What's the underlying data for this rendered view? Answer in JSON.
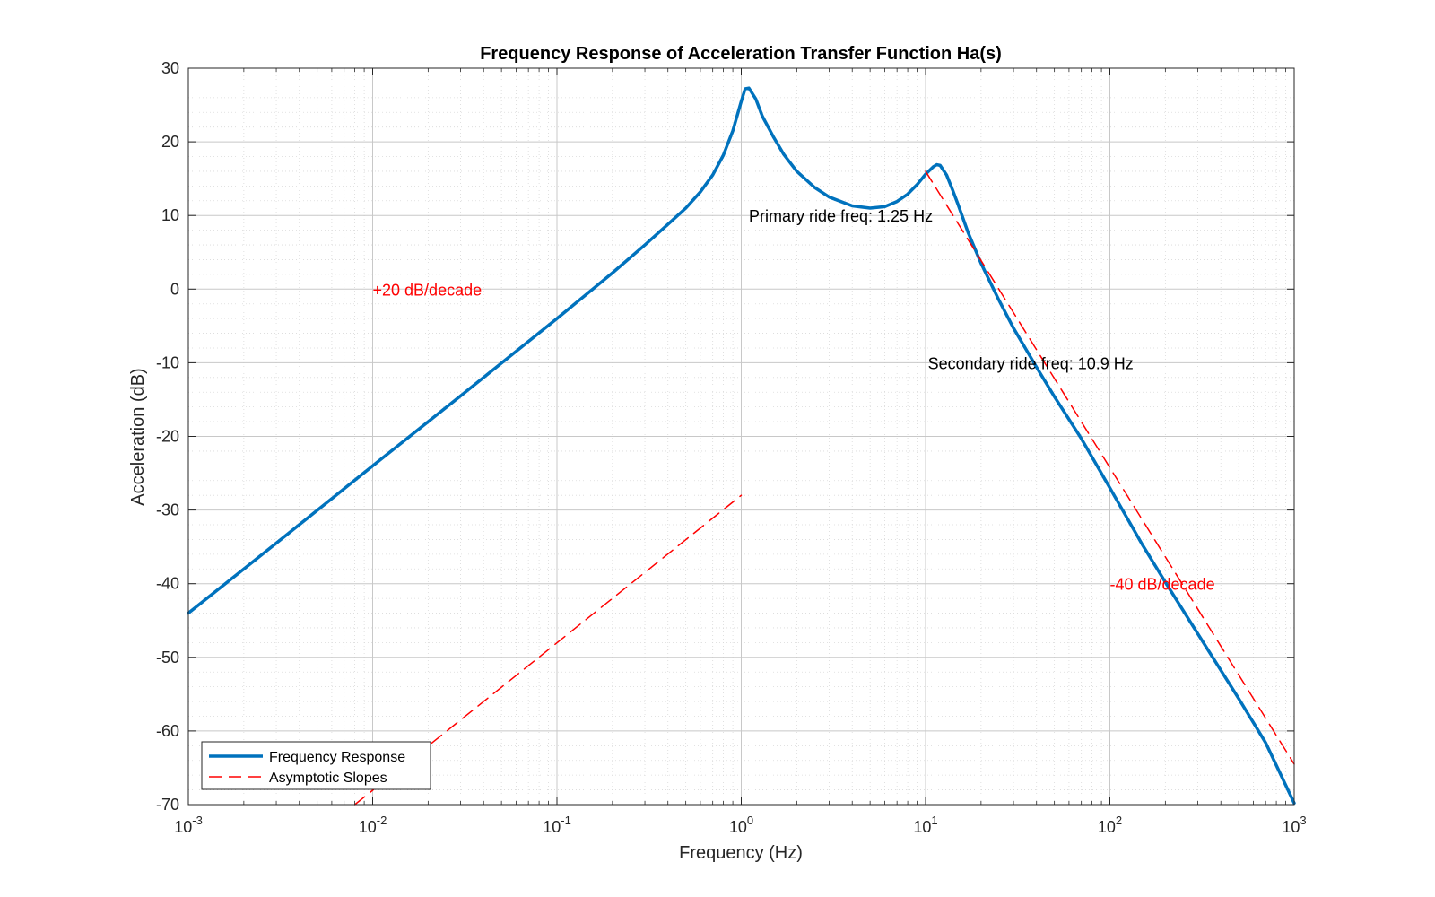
{
  "chart_data": {
    "type": "line",
    "title": "Frequency Response of Acceleration Transfer Function Ha(s)",
    "xlabel": "Frequency (Hz)",
    "ylabel": "Acceleration (dB)",
    "xscale": "log",
    "xlim": [
      0.001,
      1000
    ],
    "ylim": [
      -70,
      30
    ],
    "grid": true,
    "minor_grid": true,
    "legend_position": "bottom-left",
    "x_ticks": [
      {
        "base": "10",
        "exp": "-3",
        "value": 0.001
      },
      {
        "base": "10",
        "exp": "-2",
        "value": 0.01
      },
      {
        "base": "10",
        "exp": "-1",
        "value": 0.1
      },
      {
        "base": "10",
        "exp": "0",
        "value": 1
      },
      {
        "base": "10",
        "exp": "1",
        "value": 10
      },
      {
        "base": "10",
        "exp": "2",
        "value": 100
      },
      {
        "base": "10",
        "exp": "3",
        "value": 1000
      }
    ],
    "y_ticks": [
      {
        "label": "30",
        "value": 30
      },
      {
        "label": "20",
        "value": 20
      },
      {
        "label": "10",
        "value": 10
      },
      {
        "label": "0",
        "value": 0
      },
      {
        "label": "-10",
        "value": -10
      },
      {
        "label": "-20",
        "value": -20
      },
      {
        "label": "-30",
        "value": -30
      },
      {
        "label": "-40",
        "value": -40
      },
      {
        "label": "-50",
        "value": -50
      },
      {
        "label": "-60",
        "value": -60
      },
      {
        "label": "-70",
        "value": -70
      }
    ],
    "series": [
      {
        "name": "Frequency Response",
        "color": "#0072BD",
        "style": "solid",
        "x": [
          0.001,
          0.003,
          0.01,
          0.03,
          0.1,
          0.2,
          0.3,
          0.4,
          0.5,
          0.6,
          0.7,
          0.8,
          0.9,
          1.0,
          1.05,
          1.1,
          1.2,
          1.3,
          1.5,
          1.7,
          2.0,
          2.5,
          3.0,
          4.0,
          5.0,
          6.0,
          7.0,
          8.0,
          9.0,
          10.0,
          11.0,
          11.5,
          12.0,
          13.0,
          14.0,
          15.0,
          17.0,
          20.0,
          25.0,
          30.0,
          40.0,
          50.0,
          70.0,
          100.0,
          150.0,
          200.0,
          300.0,
          500.0,
          700.0,
          1000.0
        ],
        "y": [
          -44,
          -34.5,
          -24,
          -14.5,
          -4,
          2.2,
          6.0,
          8.8,
          11.0,
          13.2,
          15.5,
          18.2,
          21.5,
          25.5,
          27.2,
          27.3,
          25.8,
          23.5,
          20.6,
          18.3,
          16.0,
          13.8,
          12.5,
          11.3,
          11.0,
          11.2,
          11.9,
          12.9,
          14.2,
          15.6,
          16.6,
          16.9,
          16.8,
          15.5,
          13.5,
          11.5,
          7.7,
          3.5,
          -1.5,
          -5.3,
          -10.6,
          -14.6,
          -20.3,
          -27.0,
          -34.7,
          -39.8,
          -46.8,
          -55.6,
          -61.6,
          -69.8
        ]
      },
      {
        "name": "Asymptotic Slopes",
        "color": "#FF0000",
        "style": "dashed",
        "segments": [
          {
            "x": [
              0.008,
              1.0
            ],
            "y": [
              -70,
              -28
            ]
          },
          {
            "x": [
              10.0,
              1000.0
            ],
            "y": [
              16.0,
              -64.5
            ]
          }
        ]
      }
    ],
    "annotations": [
      {
        "text": "+20 dB/decade",
        "x": 0.01,
        "y": 0,
        "color": "#FF0000"
      },
      {
        "text": "-40 dB/decade",
        "x": 100,
        "y": -40,
        "color": "#FF0000"
      },
      {
        "text": "Primary ride freq: 1.25 Hz",
        "x": 1.1,
        "y": 10,
        "color": "#000000"
      },
      {
        "text": "Secondary ride freq: 10.9 Hz",
        "x": 10.3,
        "y": -10,
        "color": "#000000"
      }
    ]
  }
}
